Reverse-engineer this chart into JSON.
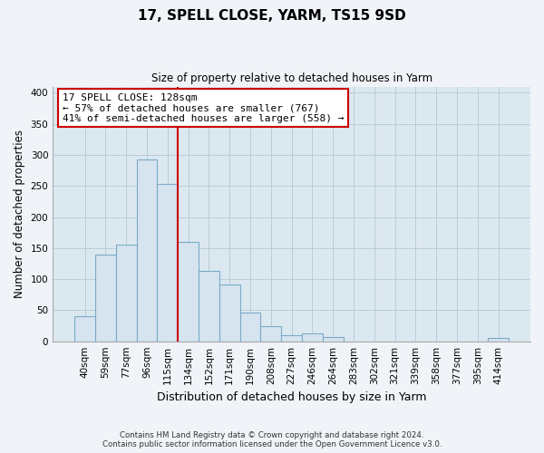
{
  "title": "17, SPELL CLOSE, YARM, TS15 9SD",
  "subtitle": "Size of property relative to detached houses in Yarm",
  "xlabel": "Distribution of detached houses by size in Yarm",
  "ylabel": "Number of detached properties",
  "bar_labels": [
    "40sqm",
    "59sqm",
    "77sqm",
    "96sqm",
    "115sqm",
    "134sqm",
    "152sqm",
    "171sqm",
    "190sqm",
    "208sqm",
    "227sqm",
    "246sqm",
    "264sqm",
    "283sqm",
    "302sqm",
    "321sqm",
    "339sqm",
    "358sqm",
    "377sqm",
    "395sqm",
    "414sqm"
  ],
  "bar_values": [
    40,
    139,
    155,
    293,
    253,
    160,
    113,
    92,
    46,
    25,
    10,
    13,
    7,
    0,
    0,
    0,
    0,
    0,
    0,
    0,
    5
  ],
  "bar_color": "#d6e4f0",
  "bar_edge_color": "#7aaac8",
  "vline_color": "#cc0000",
  "annotation_title": "17 SPELL CLOSE: 128sqm",
  "annotation_line1": "← 57% of detached houses are smaller (767)",
  "annotation_line2": "41% of semi-detached houses are larger (558) →",
  "annotation_box_color": "#ffffff",
  "annotation_box_edge": "#cc0000",
  "ylim": [
    0,
    410
  ],
  "yticks": [
    0,
    50,
    100,
    150,
    200,
    250,
    300,
    350,
    400
  ],
  "footer_line1": "Contains HM Land Registry data © Crown copyright and database right 2024.",
  "footer_line2": "Contains public sector information licensed under the Open Government Licence v3.0.",
  "bg_color": "#f0f4f8",
  "plot_bg_color": "#dce8f0",
  "grid_color": "#b8ccd8"
}
